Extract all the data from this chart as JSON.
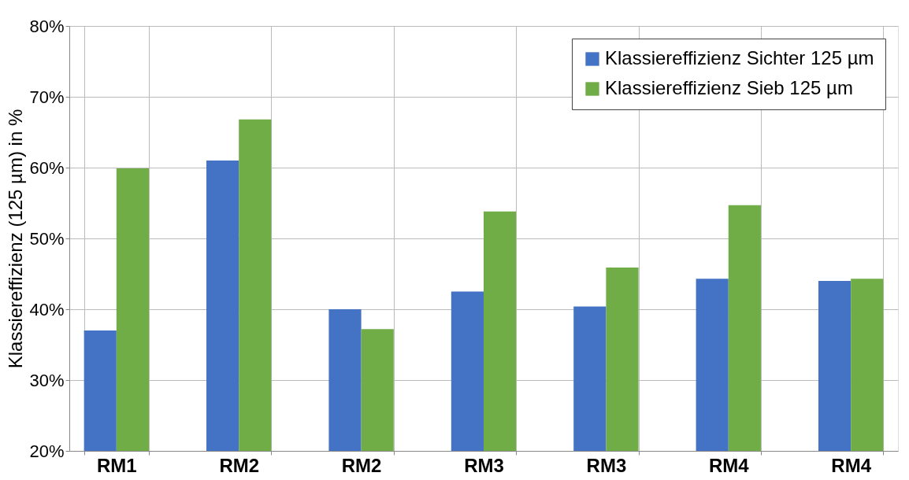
{
  "chart_data": {
    "type": "bar",
    "ylabel": "Klassiereffizienz (125 µm) in %",
    "categories": [
      "RM1",
      "RM2",
      "RM2",
      "RM3",
      "RM3",
      "RM4",
      "RM4"
    ],
    "series": [
      {
        "name": "Klassiereffizienz Sichter 125 µm",
        "color": "#4472c4",
        "values": [
          37.0,
          61.0,
          40.0,
          42.5,
          40.4,
          44.3,
          44.0
        ]
      },
      {
        "name": "Klassiereffizienz Sieb 125 µm",
        "color": "#70ad47",
        "values": [
          59.9,
          66.8,
          37.2,
          53.8,
          45.9,
          54.7,
          44.3
        ]
      }
    ],
    "ylim": [
      20,
      80
    ],
    "yticks": [
      {
        "value": 20,
        "label": "20%"
      },
      {
        "value": 30,
        "label": "30%"
      },
      {
        "value": 40,
        "label": "40%"
      },
      {
        "value": 50,
        "label": "50%"
      },
      {
        "value": 60,
        "label": "60%"
      },
      {
        "value": 70,
        "label": "70%"
      },
      {
        "value": 80,
        "label": "80%"
      }
    ],
    "grid": true,
    "legend": "top right"
  }
}
